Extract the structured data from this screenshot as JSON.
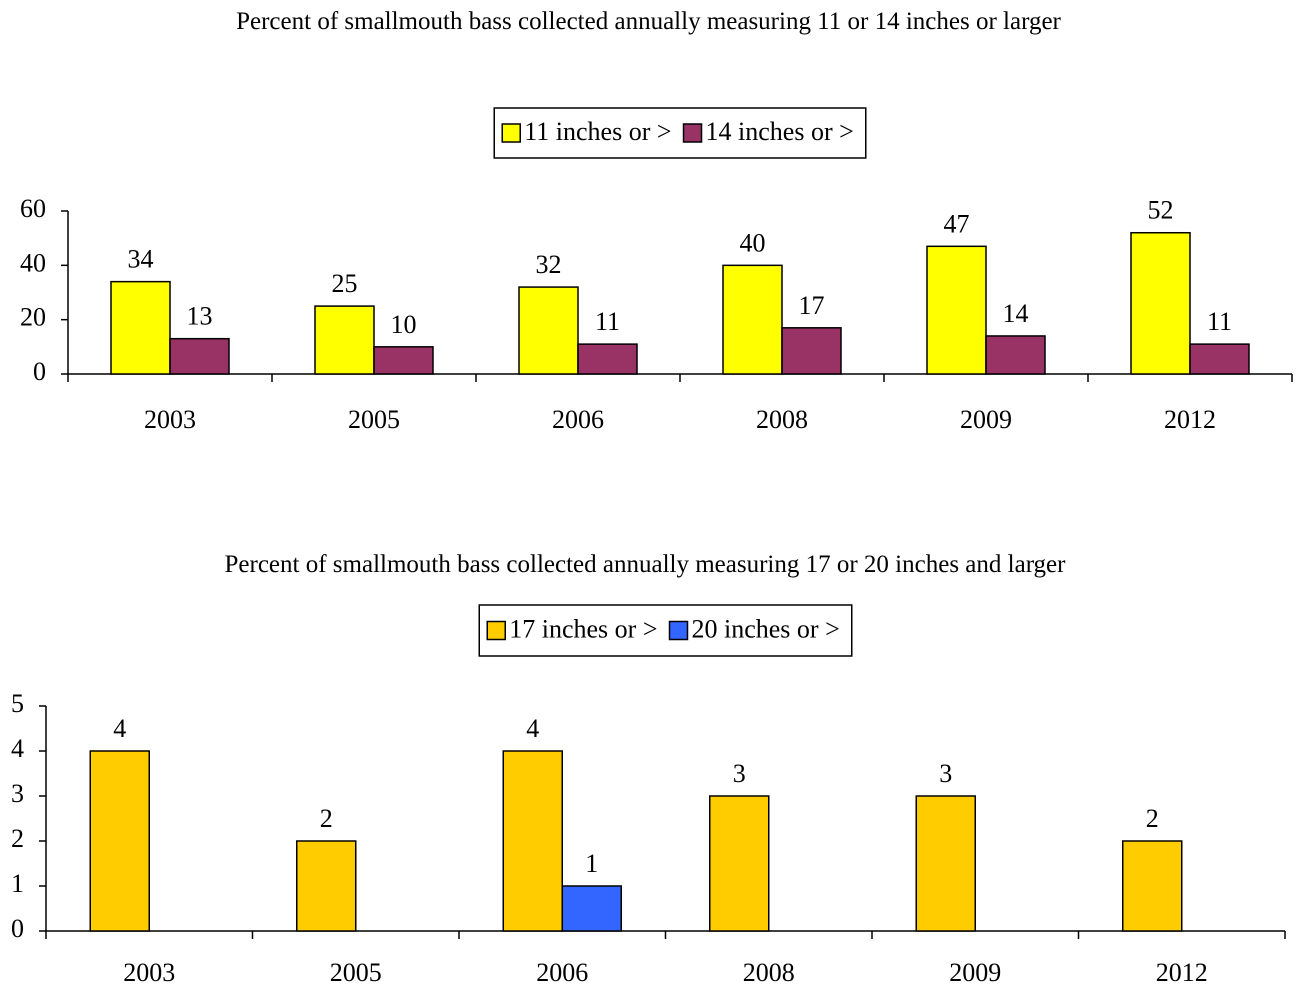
{
  "chart_data": [
    {
      "type": "bar",
      "title": "Percent of smallmouth bass collected annually measuring 11 or 14 inches or larger",
      "categories": [
        "2003",
        "2005",
        "2006",
        "2008",
        "2009",
        "2012"
      ],
      "series": [
        {
          "name": "11 inches or >",
          "color": "#ffff00",
          "values": [
            34,
            25,
            32,
            40,
            47,
            52
          ]
        },
        {
          "name": "14 inches or >",
          "color": "#993366",
          "values": [
            13,
            10,
            11,
            17,
            14,
            11
          ]
        }
      ],
      "ylim": [
        0,
        60
      ],
      "yticks": [
        0,
        20,
        40,
        60
      ],
      "legend": "top"
    },
    {
      "type": "bar",
      "title": "Percent of smallmouth bass collected annually measuring 17 or 20 inches and larger",
      "categories": [
        "2003",
        "2005",
        "2006",
        "2008",
        "2009",
        "2012"
      ],
      "series": [
        {
          "name": "17 inches or >",
          "color": "#ffcc00",
          "values": [
            4,
            2,
            4,
            3,
            3,
            2
          ]
        },
        {
          "name": "20 inches or >",
          "color": "#3366ff",
          "values": [
            null,
            null,
            1,
            null,
            null,
            null
          ]
        }
      ],
      "ylim": [
        0,
        5
      ],
      "yticks": [
        0,
        1,
        2,
        3,
        4,
        5
      ],
      "legend": "top"
    }
  ]
}
